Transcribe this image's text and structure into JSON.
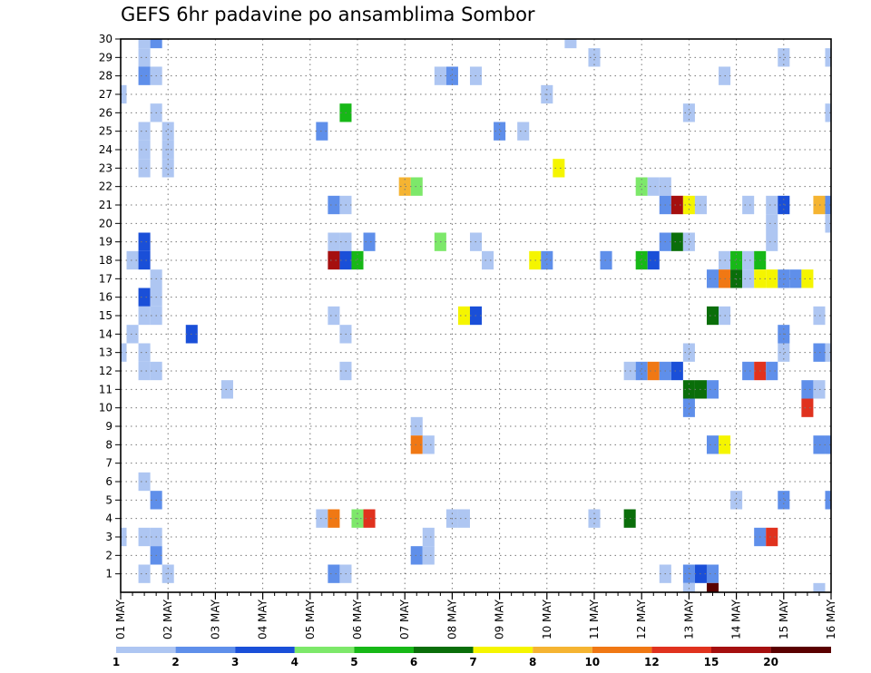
{
  "chart_data": {
    "type": "heatmap",
    "title": "GEFS 6hr padavine po ansamblima Sombor",
    "xlabel": "",
    "ylabel": "",
    "x_ticks": [
      "01 MAY",
      "02 MAY",
      "03 MAY",
      "04 MAY",
      "05 MAY",
      "06 MAY",
      "07 MAY",
      "08 MAY",
      "09 MAY",
      "10 MAY",
      "11 MAY",
      "12 MAY",
      "13 MAY",
      "14 MAY",
      "15 MAY",
      "16 MAY"
    ],
    "xlim": [
      0,
      60
    ],
    "x_unit": "6-hour step from 01 MAY 00Z",
    "y_ticks": [
      1,
      2,
      3,
      4,
      5,
      6,
      7,
      8,
      9,
      10,
      11,
      12,
      13,
      14,
      15,
      16,
      17,
      18,
      19,
      20,
      21,
      22,
      23,
      24,
      25,
      26,
      27,
      28,
      29,
      30
    ],
    "ylim": [
      0,
      30
    ],
    "y_unit": "ensemble member",
    "grid": true,
    "colorbar": {
      "levels": [
        1,
        2,
        3,
        4,
        5,
        6,
        7,
        8,
        10,
        12,
        15,
        20
      ],
      "colors": [
        "#aec6f2",
        "#5f8fea",
        "#1a4fd8",
        "#7de86a",
        "#17b817",
        "#0a6e0a",
        "#f5f500",
        "#f5b432",
        "#f07814",
        "#e0321e",
        "#a50f0f",
        "#5a0000"
      ]
    },
    "cells": [
      [
        2,
        30,
        0
      ],
      [
        3,
        30,
        1
      ],
      [
        38,
        30,
        0
      ],
      [
        40,
        29,
        0
      ],
      [
        2,
        29,
        0
      ],
      [
        56,
        29,
        0
      ],
      [
        60,
        29,
        0
      ],
      [
        2,
        28,
        1
      ],
      [
        3,
        28,
        0
      ],
      [
        27,
        28,
        0
      ],
      [
        28,
        28,
        1
      ],
      [
        30,
        28,
        0
      ],
      [
        51,
        28,
        0
      ],
      [
        0,
        27,
        0
      ],
      [
        36,
        27,
        0
      ],
      [
        3,
        26,
        0
      ],
      [
        19,
        26,
        4
      ],
      [
        48,
        26,
        0
      ],
      [
        60,
        26,
        0
      ],
      [
        2,
        25,
        0
      ],
      [
        4,
        25,
        0
      ],
      [
        17,
        25,
        1
      ],
      [
        32,
        25,
        1
      ],
      [
        34,
        25,
        0
      ],
      [
        2,
        24,
        0
      ],
      [
        4,
        24,
        0
      ],
      [
        37,
        23,
        6
      ],
      [
        2,
        23,
        0
      ],
      [
        4,
        23,
        0
      ],
      [
        24,
        22,
        7
      ],
      [
        25,
        22,
        3
      ],
      [
        44,
        22,
        3
      ],
      [
        45,
        22,
        0
      ],
      [
        46,
        22,
        0
      ],
      [
        18,
        21,
        1
      ],
      [
        19,
        21,
        0
      ],
      [
        46,
        21,
        1
      ],
      [
        47,
        21,
        10
      ],
      [
        48,
        21,
        6
      ],
      [
        49,
        21,
        0
      ],
      [
        53,
        21,
        0
      ],
      [
        55,
        21,
        0
      ],
      [
        56,
        21,
        2
      ],
      [
        59,
        21,
        7
      ],
      [
        60,
        21,
        1
      ],
      [
        55,
        20,
        0
      ],
      [
        60,
        20,
        0
      ],
      [
        2,
        19,
        2
      ],
      [
        18,
        19,
        0
      ],
      [
        19,
        19,
        0
      ],
      [
        21,
        19,
        1
      ],
      [
        27,
        19,
        3
      ],
      [
        30,
        19,
        0
      ],
      [
        46,
        19,
        1
      ],
      [
        47,
        19,
        5
      ],
      [
        48,
        19,
        0
      ],
      [
        55,
        19,
        0
      ],
      [
        1,
        18,
        0
      ],
      [
        2,
        18,
        2
      ],
      [
        18,
        18,
        10
      ],
      [
        19,
        18,
        2
      ],
      [
        20,
        18,
        4
      ],
      [
        31,
        18,
        0
      ],
      [
        35,
        18,
        6
      ],
      [
        36,
        18,
        1
      ],
      [
        41,
        18,
        1
      ],
      [
        44,
        18,
        4
      ],
      [
        45,
        18,
        2
      ],
      [
        51,
        18,
        0
      ],
      [
        52,
        18,
        4
      ],
      [
        53,
        18,
        0
      ],
      [
        54,
        18,
        4
      ],
      [
        3,
        17,
        0
      ],
      [
        50,
        17,
        1
      ],
      [
        51,
        17,
        8
      ],
      [
        52,
        17,
        5
      ],
      [
        53,
        17,
        0
      ],
      [
        54,
        17,
        6
      ],
      [
        55,
        17,
        6
      ],
      [
        56,
        17,
        1
      ],
      [
        57,
        17,
        1
      ],
      [
        58,
        17,
        6
      ],
      [
        2,
        16,
        2
      ],
      [
        3,
        16,
        0
      ],
      [
        2,
        15,
        0
      ],
      [
        3,
        15,
        0
      ],
      [
        18,
        15,
        0
      ],
      [
        29,
        15,
        6
      ],
      [
        30,
        15,
        2
      ],
      [
        50,
        15,
        5
      ],
      [
        51,
        15,
        0
      ],
      [
        59,
        15,
        0
      ],
      [
        1,
        14,
        0
      ],
      [
        6,
        14,
        2
      ],
      [
        19,
        14,
        0
      ],
      [
        56,
        14,
        1
      ],
      [
        0,
        13,
        0
      ],
      [
        2,
        13,
        0
      ],
      [
        48,
        13,
        0
      ],
      [
        56,
        13,
        0
      ],
      [
        59,
        13,
        1
      ],
      [
        60,
        13,
        0
      ],
      [
        2,
        12,
        0
      ],
      [
        3,
        12,
        0
      ],
      [
        19,
        12,
        0
      ],
      [
        43,
        12,
        0
      ],
      [
        44,
        12,
        1
      ],
      [
        45,
        12,
        8
      ],
      [
        46,
        12,
        1
      ],
      [
        47,
        12,
        2
      ],
      [
        53,
        12,
        1
      ],
      [
        54,
        12,
        9
      ],
      [
        55,
        12,
        1
      ],
      [
        9,
        11,
        0
      ],
      [
        48,
        11,
        5
      ],
      [
        49,
        11,
        5
      ],
      [
        50,
        11,
        1
      ],
      [
        58,
        11,
        1
      ],
      [
        59,
        11,
        0
      ],
      [
        48,
        10,
        1
      ],
      [
        58,
        10,
        9
      ],
      [
        25,
        9,
        0
      ],
      [
        25,
        8,
        8
      ],
      [
        26,
        8,
        0
      ],
      [
        50,
        8,
        1
      ],
      [
        51,
        8,
        6
      ],
      [
        59,
        8,
        1
      ],
      [
        60,
        8,
        1
      ],
      [
        2,
        6,
        0
      ],
      [
        3,
        5,
        1
      ],
      [
        52,
        5,
        0
      ],
      [
        56,
        5,
        1
      ],
      [
        60,
        5,
        1
      ],
      [
        17,
        4,
        0
      ],
      [
        18,
        4,
        8
      ],
      [
        20,
        4,
        3
      ],
      [
        21,
        4,
        9
      ],
      [
        28,
        4,
        0
      ],
      [
        29,
        4,
        0
      ],
      [
        40,
        4,
        0
      ],
      [
        43,
        4,
        5
      ],
      [
        0,
        3,
        0
      ],
      [
        2,
        3,
        0
      ],
      [
        3,
        3,
        0
      ],
      [
        26,
        3,
        0
      ],
      [
        54,
        3,
        1
      ],
      [
        55,
        3,
        9
      ],
      [
        3,
        2,
        1
      ],
      [
        25,
        2,
        1
      ],
      [
        26,
        2,
        0
      ],
      [
        2,
        1,
        0
      ],
      [
        4,
        1,
        0
      ],
      [
        18,
        1,
        1
      ],
      [
        19,
        1,
        0
      ],
      [
        46,
        1,
        0
      ],
      [
        48,
        1,
        1
      ],
      [
        49,
        1,
        2
      ],
      [
        50,
        1,
        1
      ],
      [
        48,
        0,
        0
      ],
      [
        50,
        0,
        11
      ],
      [
        59,
        0,
        0
      ]
    ]
  }
}
